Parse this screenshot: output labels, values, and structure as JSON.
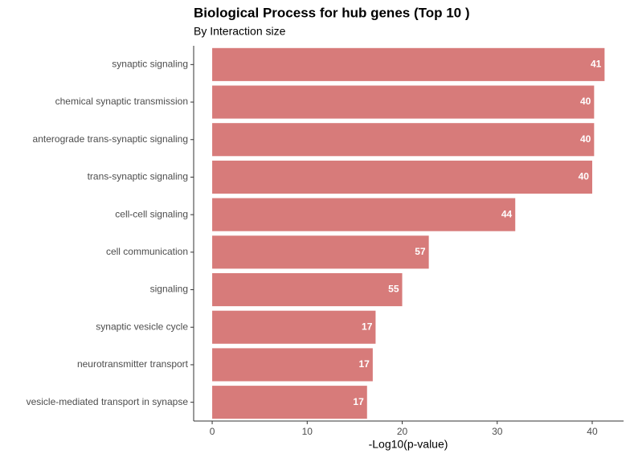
{
  "chart_data": {
    "type": "barh",
    "title": "Biological Process for hub genes (Top 10 )",
    "subtitle": "By Interaction size",
    "x_label": "-Log10(p-value)",
    "categories": [
      "synaptic signaling",
      "chemical synaptic transmission",
      "anterograde trans-synaptic signaling",
      "trans-synaptic signaling",
      "cell-cell signaling",
      "cell communication",
      "signaling",
      "synaptic vesicle cycle",
      "neurotransmitter transport",
      "vesicle-mediated transport in synapse"
    ],
    "values": [
      41.3,
      40.2,
      40.2,
      40.0,
      31.9,
      22.8,
      20.0,
      17.2,
      16.9,
      16.3
    ],
    "interaction_size": [
      41,
      40,
      40,
      40,
      44,
      57,
      55,
      17,
      17,
      17
    ],
    "color": "#d77b7a",
    "xlim": [
      -1.95,
      43.3
    ],
    "xticks": [
      0,
      10,
      20,
      30,
      40
    ],
    "grid": false
  }
}
